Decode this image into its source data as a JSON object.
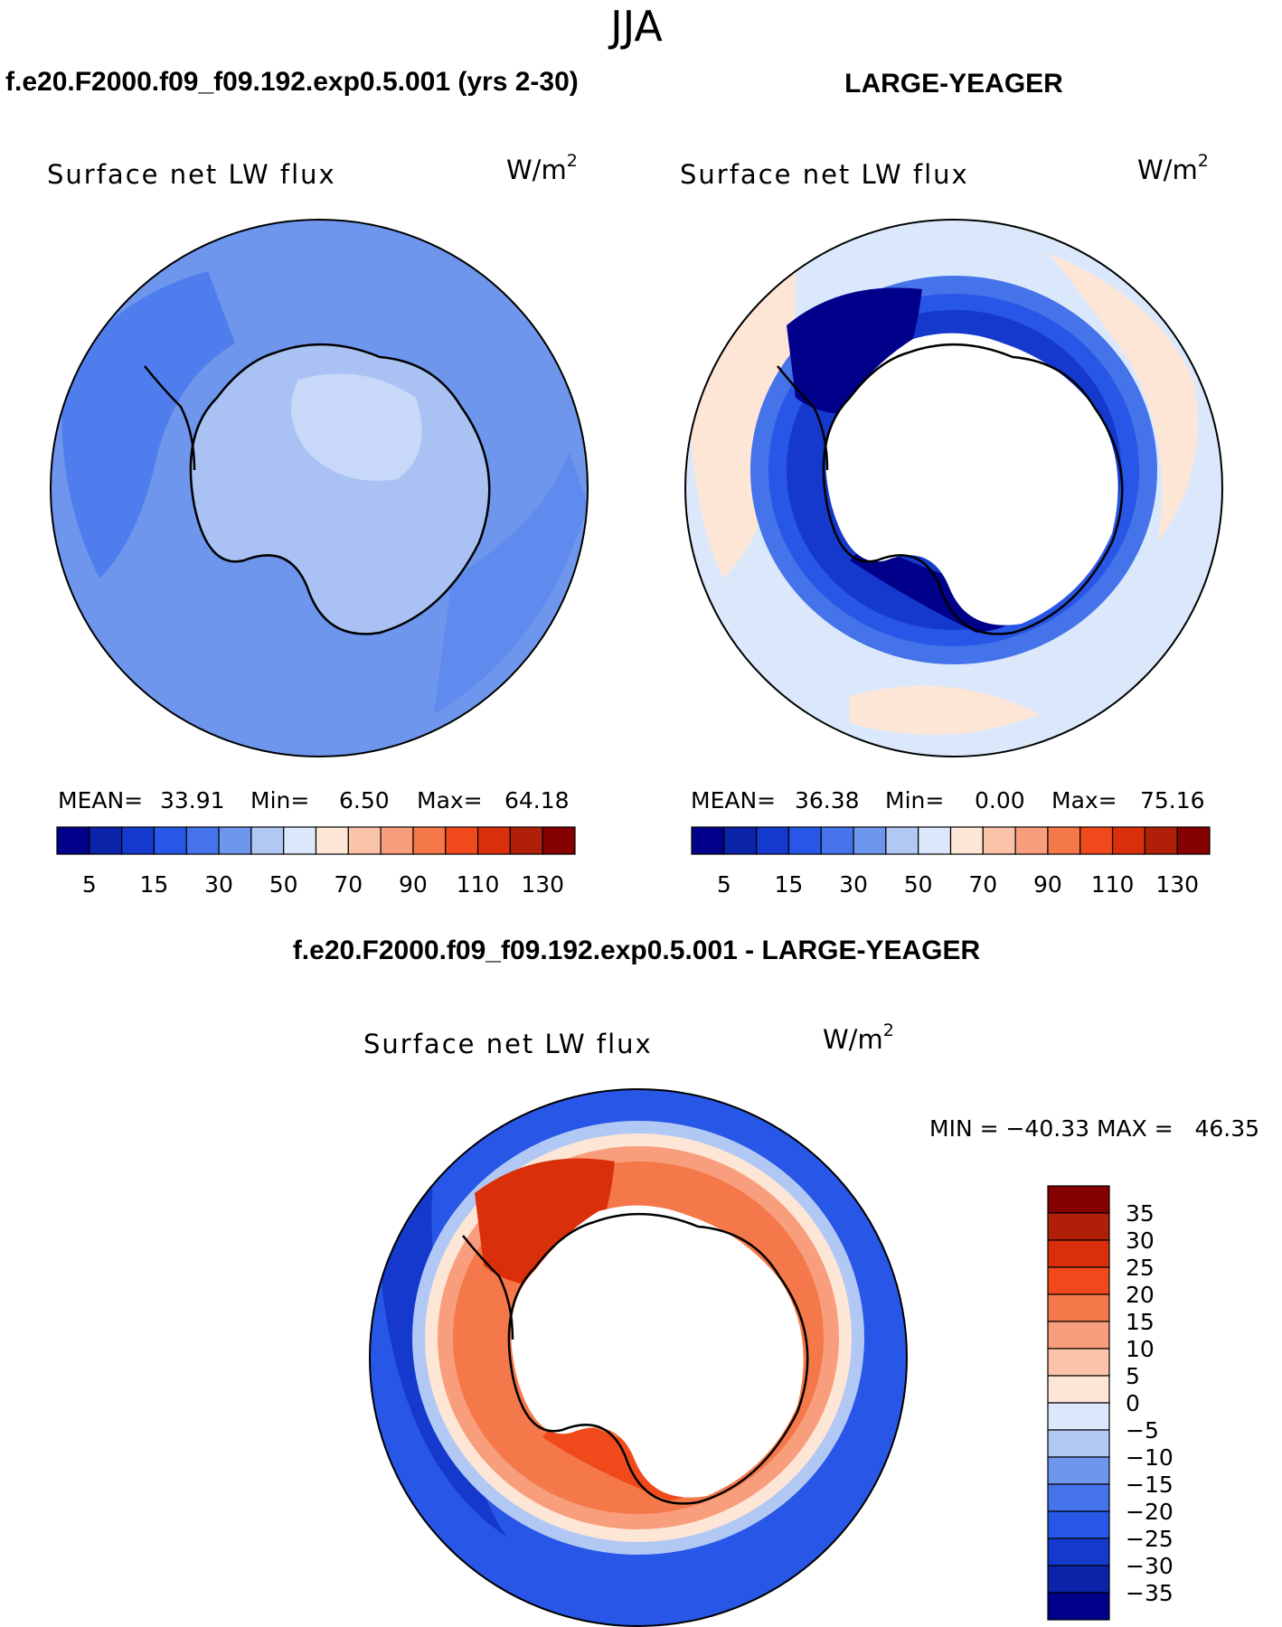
{
  "figure": {
    "season": "JJA",
    "left_title": "f.e20.F2000.f09_f09.192.exp0.5.001 (yrs 2-30)",
    "right_title": "LARGE-YEAGER",
    "diff_title": "f.e20.F2000.f09_f09.192.exp0.5.001 - LARGE-YEAGER"
  },
  "chart_data": [
    {
      "type": "heatmap",
      "panel": "model",
      "title": "Surface net LW flux",
      "units_prefix": "W/m",
      "units_exp": "2",
      "stats": {
        "mean_label": "MEAN=",
        "mean": "33.91",
        "min_label": "Min=",
        "min": "6.50",
        "max_label": "Max=",
        "max": "64.18"
      },
      "colorbar": {
        "colors": [
          "#00008a",
          "#0b23a8",
          "#1439cc",
          "#2856e6",
          "#4473ea",
          "#6e96ec",
          "#b2c8f4",
          "#dbe8fb",
          "#fde6d6",
          "#fbc3a8",
          "#f99e7c",
          "#f47849",
          "#f04a1c",
          "#d9300b",
          "#b01f08",
          "#850000"
        ],
        "tick_labels": [
          "5",
          "15",
          "30",
          "50",
          "70",
          "90",
          "110",
          "130"
        ]
      },
      "field_description": "uniform moderate blue ocean, lighter over continent"
    },
    {
      "type": "heatmap",
      "panel": "observations",
      "title": "Surface net LW flux",
      "units_prefix": "W/m",
      "units_exp": "2",
      "stats": {
        "mean_label": "MEAN=",
        "mean": "36.38",
        "min_label": "Min=",
        "min": "0.00",
        "max_label": "Max=",
        "max": "75.16"
      },
      "colorbar": {
        "colors": [
          "#00008a",
          "#0b23a8",
          "#1439cc",
          "#2856e6",
          "#4473ea",
          "#6e96ec",
          "#b2c8f4",
          "#dbe8fb",
          "#fde6d6",
          "#fbc3a8",
          "#f99e7c",
          "#f47849",
          "#f04a1c",
          "#d9300b",
          "#b01f08",
          "#850000"
        ],
        "tick_labels": [
          "5",
          "15",
          "30",
          "50",
          "70",
          "90",
          "110",
          "130"
        ]
      },
      "field_description": "dark blue ring around blank continent, pale outer ocean"
    },
    {
      "type": "heatmap",
      "panel": "difference",
      "title": "Surface net LW flux",
      "units_prefix": "W/m",
      "units_exp": "2",
      "minmax": "MIN = −40.33 MAX =   46.35",
      "colorbar": {
        "colors": [
          "#850000",
          "#b01f08",
          "#d9300b",
          "#f04a1c",
          "#f47849",
          "#f99e7c",
          "#fbc3a8",
          "#fde6d6",
          "#dbe8fb",
          "#b2c8f4",
          "#6e96ec",
          "#4473ea",
          "#2856e6",
          "#1439cc",
          "#0b23a8",
          "#00008a"
        ],
        "tick_labels": [
          "35",
          "30",
          "25",
          "20",
          "15",
          "10",
          "5",
          "0",
          "−5",
          "−10",
          "−15",
          "−20",
          "−25",
          "−30",
          "−35"
        ]
      },
      "field_description": "red ring around blank continent, blue outer ocean"
    }
  ]
}
